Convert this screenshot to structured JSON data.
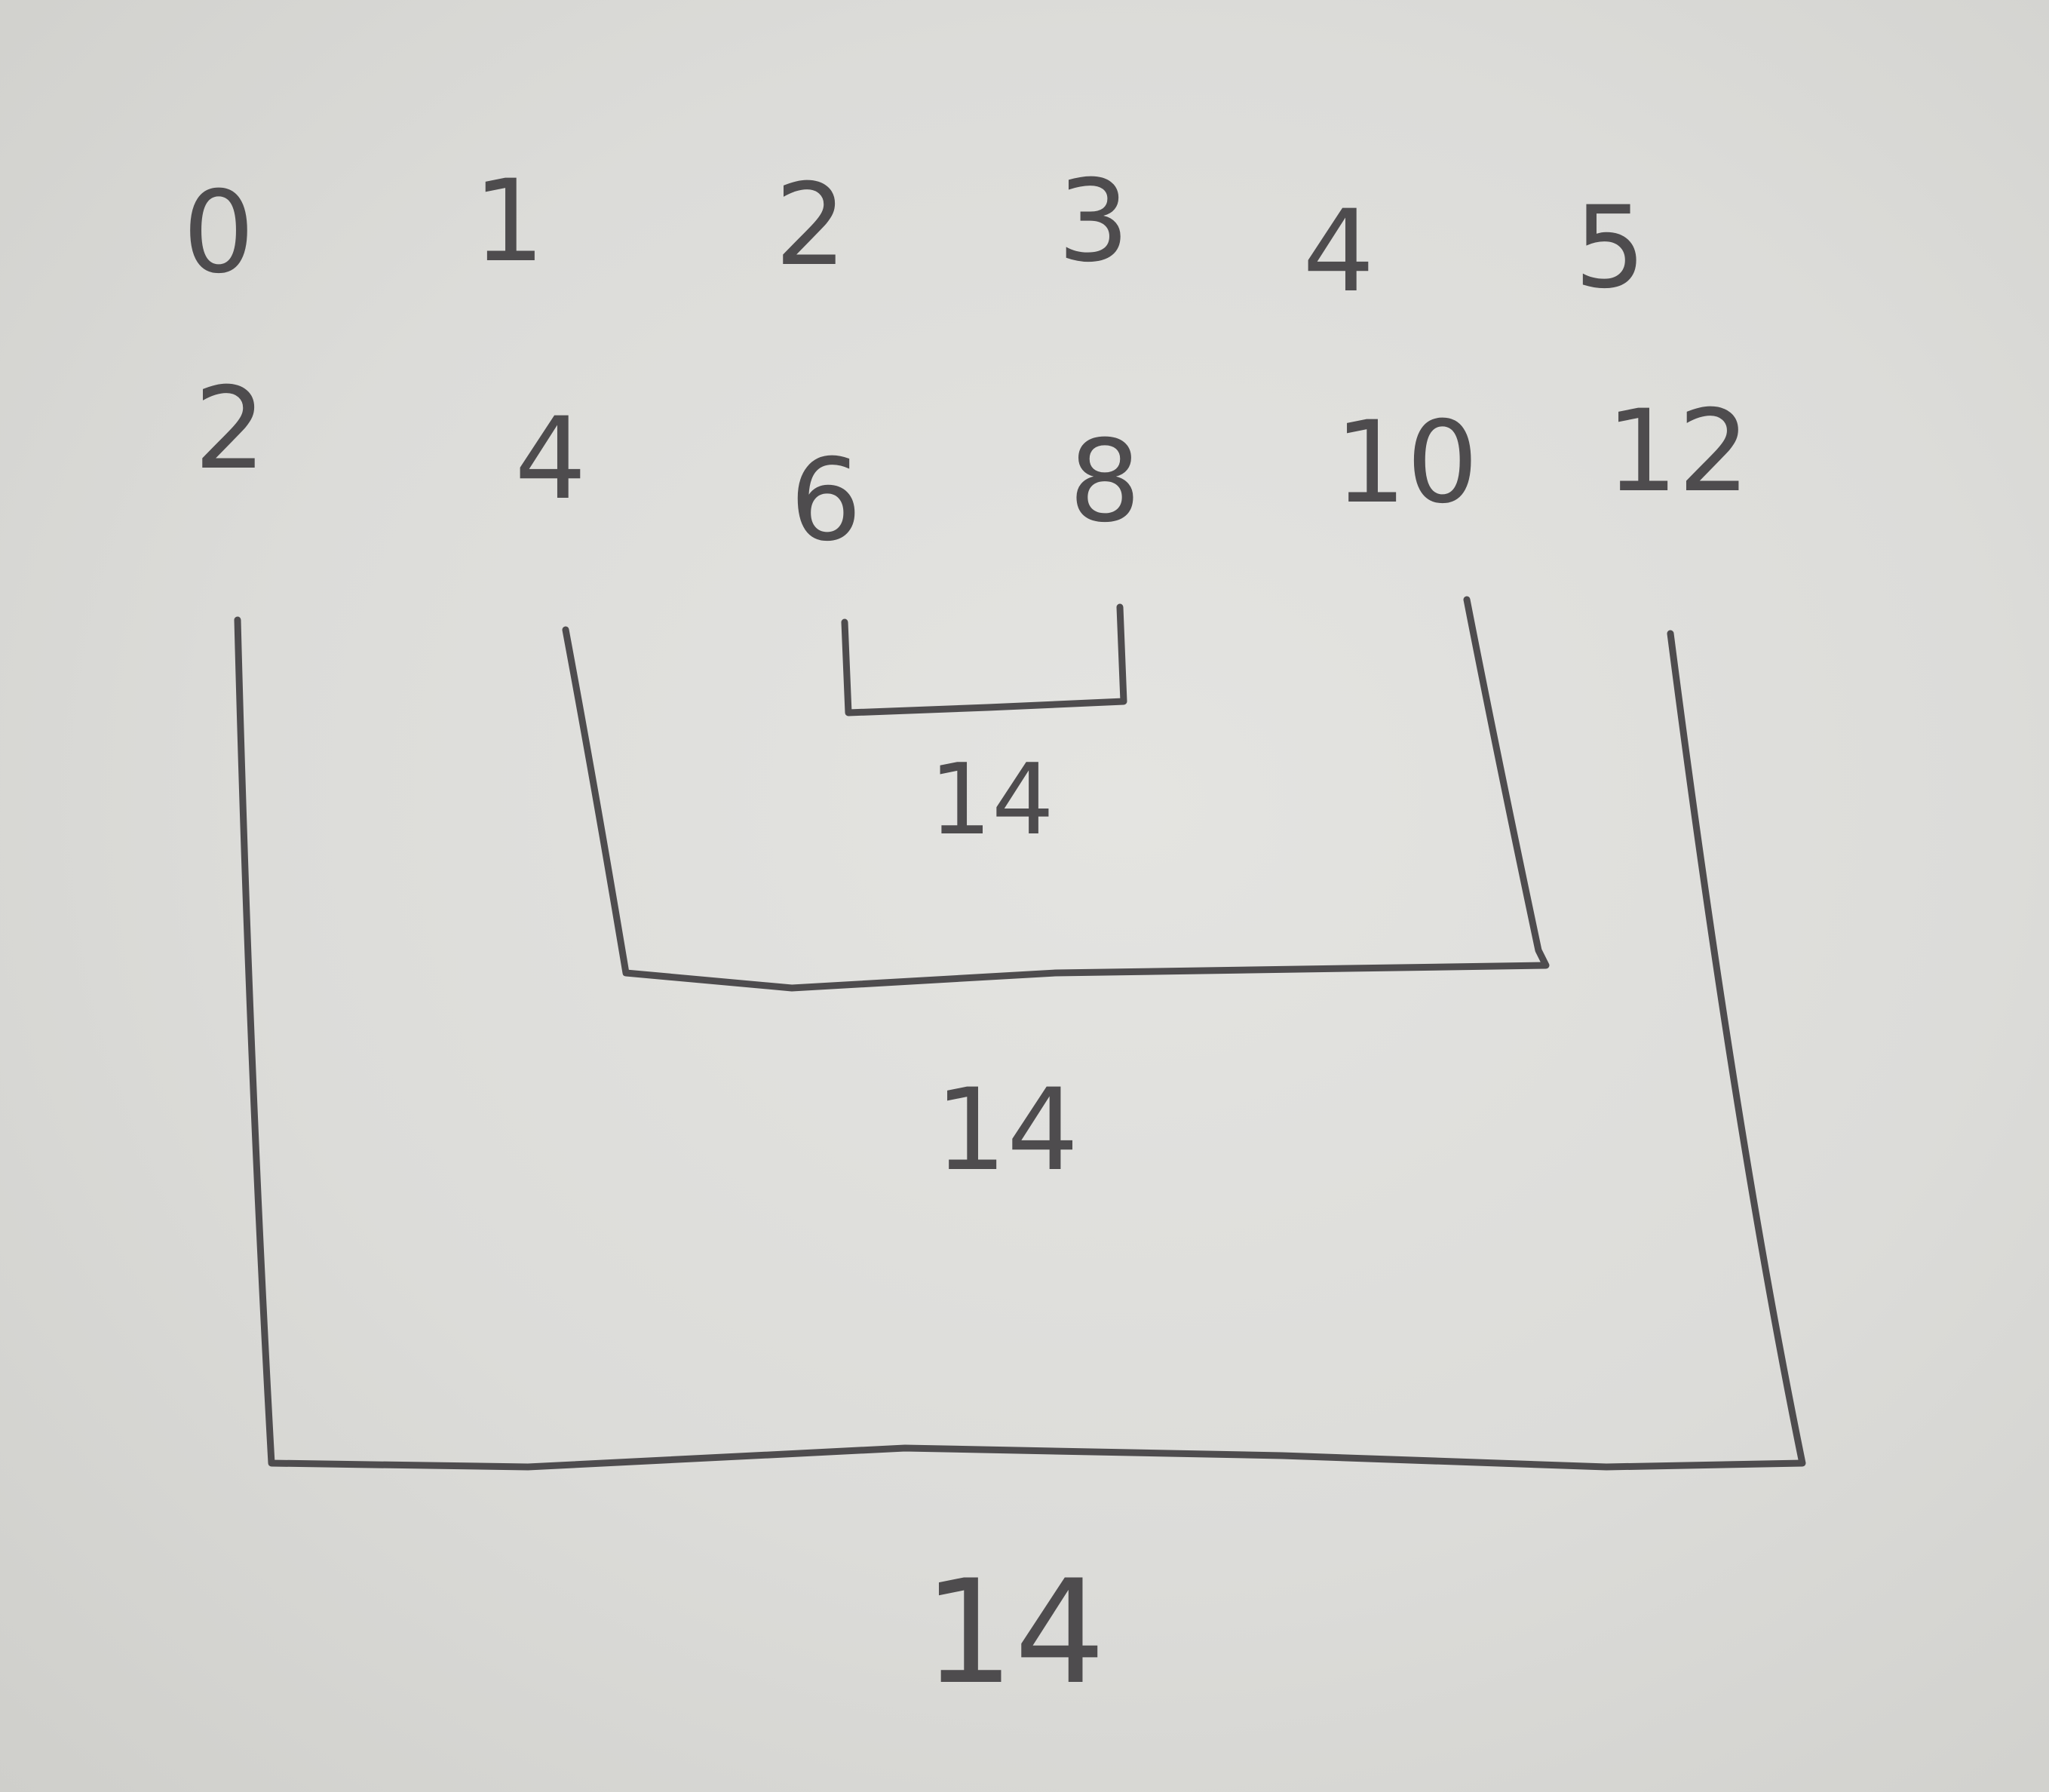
{
  "indices": [
    "0",
    "1",
    "2",
    "3",
    "4",
    "5"
  ],
  "values": [
    "2",
    "4",
    "6",
    "8",
    "10",
    "12"
  ],
  "pair_sums": [
    "14",
    "14",
    "14"
  ],
  "colors": {
    "ink": "#4e4c4e",
    "paper": "#dcdcd9"
  }
}
